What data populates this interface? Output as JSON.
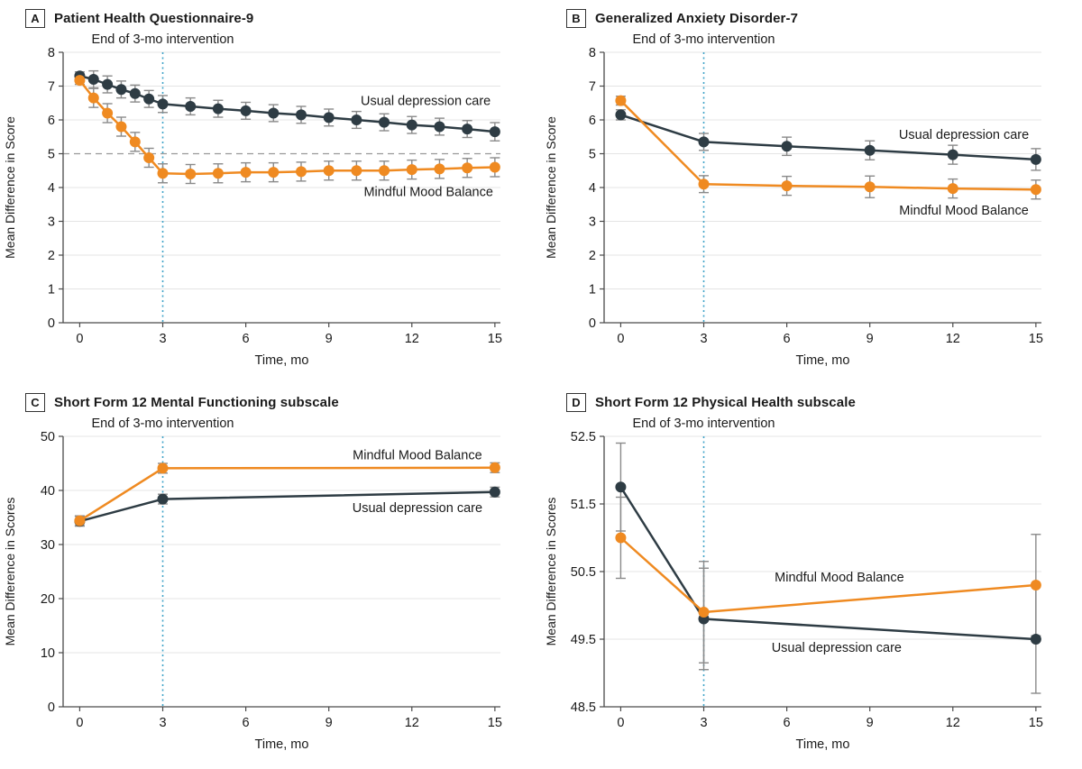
{
  "figure": {
    "xlabel": "Time, mo",
    "colors": {
      "usual_care": "#2e3c44",
      "mindful_mood_balance": "#ef8a21",
      "annotation_blue": "#3fa3c8",
      "error_bar_gray": "#8a8a8a",
      "gridline": "#e4e4e4",
      "reference_dash": "#999999"
    }
  },
  "chart_data": [
    {
      "type": "line",
      "panel_label": "A",
      "title": "Patient Health Questionnaire-9",
      "annotation": {
        "text": "End of 3-mo intervention",
        "x": 3,
        "color": "#3fa3c8"
      },
      "xlabel": "Time, mo",
      "ylabel": "Mean Difference in Score",
      "xlim": [
        -0.6,
        15.2
      ],
      "ylim": [
        0,
        8
      ],
      "yticks": [
        0,
        1,
        2,
        3,
        4,
        5,
        6,
        7,
        8
      ],
      "xticks": [
        0,
        3,
        6,
        9,
        12,
        15
      ],
      "grid": true,
      "reference_line": {
        "y": 5,
        "style": "dashed"
      },
      "series": [
        {
          "name": "Usual depression care",
          "color": "#2e3c44",
          "x": [
            0,
            0.5,
            1,
            1.5,
            2,
            2.5,
            3,
            4,
            5,
            6,
            7,
            8,
            9,
            10,
            11,
            12,
            13,
            14,
            15
          ],
          "y": [
            7.3,
            7.2,
            7.05,
            6.9,
            6.78,
            6.62,
            6.47,
            6.4,
            6.33,
            6.27,
            6.2,
            6.15,
            6.07,
            6.0,
            5.93,
            5.85,
            5.8,
            5.73,
            5.65
          ],
          "lo": [
            7.18,
            6.95,
            6.8,
            6.65,
            6.53,
            6.37,
            6.22,
            6.15,
            6.08,
            6.02,
            5.95,
            5.9,
            5.82,
            5.75,
            5.68,
            5.6,
            5.55,
            5.48,
            5.38
          ],
          "hi": [
            7.42,
            7.45,
            7.3,
            7.15,
            7.03,
            6.87,
            6.72,
            6.65,
            6.58,
            6.52,
            6.45,
            6.4,
            6.32,
            6.25,
            6.18,
            6.1,
            6.05,
            5.98,
            5.92
          ],
          "label_pos": {
            "x": 12.5,
            "y": 6.58
          }
        },
        {
          "name": "Mindful Mood Balance",
          "color": "#ef8a21",
          "x": [
            0,
            0.5,
            1,
            1.5,
            2,
            2.5,
            3,
            4,
            5,
            6,
            7,
            8,
            9,
            10,
            11,
            12,
            13,
            14,
            15
          ],
          "y": [
            7.17,
            6.65,
            6.2,
            5.8,
            5.35,
            4.88,
            4.42,
            4.4,
            4.42,
            4.45,
            4.45,
            4.47,
            4.5,
            4.5,
            4.5,
            4.53,
            4.55,
            4.58,
            4.6
          ],
          "lo": [
            7.05,
            6.37,
            5.92,
            5.52,
            5.07,
            4.6,
            4.14,
            4.12,
            4.14,
            4.17,
            4.17,
            4.19,
            4.22,
            4.22,
            4.22,
            4.25,
            4.27,
            4.3,
            4.32
          ],
          "hi": [
            7.29,
            6.93,
            6.48,
            6.08,
            5.63,
            5.16,
            4.7,
            4.68,
            4.7,
            4.73,
            4.73,
            4.75,
            4.78,
            4.78,
            4.78,
            4.81,
            4.83,
            4.86,
            4.88
          ],
          "label_pos": {
            "x": 12.6,
            "y": 3.88
          }
        }
      ]
    },
    {
      "type": "line",
      "panel_label": "B",
      "title": "Generalized Anxiety Disorder-7",
      "annotation": {
        "text": "End of 3-mo intervention",
        "x": 3,
        "color": "#3fa3c8"
      },
      "xlabel": "Time, mo",
      "ylabel": "Mean Difference in Score",
      "xlim": [
        -0.6,
        15.2
      ],
      "ylim": [
        0,
        8
      ],
      "yticks": [
        0,
        1,
        2,
        3,
        4,
        5,
        6,
        7,
        8
      ],
      "xticks": [
        0,
        3,
        6,
        9,
        12,
        15
      ],
      "grid": true,
      "series": [
        {
          "name": "Usual depression care",
          "color": "#2e3c44",
          "x": [
            0,
            3,
            6,
            9,
            12,
            15
          ],
          "y": [
            6.15,
            5.35,
            5.22,
            5.1,
            4.97,
            4.83
          ],
          "lo": [
            6.0,
            5.1,
            4.95,
            4.82,
            4.69,
            4.51
          ],
          "hi": [
            6.3,
            5.6,
            5.49,
            5.38,
            5.25,
            5.15
          ],
          "label_pos": {
            "x": 12.4,
            "y": 5.58
          }
        },
        {
          "name": "Mindful Mood Balance",
          "color": "#ef8a21",
          "x": [
            0,
            3,
            6,
            9,
            12,
            15
          ],
          "y": [
            6.57,
            4.1,
            4.05,
            4.02,
            3.97,
            3.94
          ],
          "lo": [
            6.44,
            3.85,
            3.77,
            3.7,
            3.69,
            3.66
          ],
          "hi": [
            6.7,
            4.35,
            4.33,
            4.34,
            4.25,
            4.22
          ],
          "label_pos": {
            "x": 12.4,
            "y": 3.34
          }
        }
      ]
    },
    {
      "type": "line",
      "panel_label": "C",
      "title": "Short Form 12 Mental Functioning subscale",
      "annotation": {
        "text": "End of 3-mo intervention",
        "x": 3,
        "color": "#3fa3c8"
      },
      "xlabel": "Time, mo",
      "ylabel": "Mean Difference in Scores",
      "xlim": [
        -0.6,
        15.2
      ],
      "ylim": [
        0,
        50
      ],
      "yticks": [
        0,
        10,
        20,
        30,
        40,
        50
      ],
      "xticks": [
        0,
        3,
        6,
        9,
        12,
        15
      ],
      "grid": true,
      "series": [
        {
          "name": "Usual depression care",
          "color": "#2e3c44",
          "x": [
            0,
            3,
            15
          ],
          "y": [
            34.3,
            38.4,
            39.7
          ],
          "lo": [
            33.4,
            37.5,
            38.8
          ],
          "hi": [
            35.2,
            39.3,
            40.6
          ],
          "label_pos": {
            "x": 12.2,
            "y": 36.8
          }
        },
        {
          "name": "Mindful Mood Balance",
          "color": "#ef8a21",
          "x": [
            0,
            3,
            15
          ],
          "y": [
            34.4,
            44.1,
            44.2
          ],
          "lo": [
            33.5,
            43.2,
            43.3
          ],
          "hi": [
            35.3,
            45.0,
            45.1
          ],
          "label_pos": {
            "x": 12.2,
            "y": 46.6
          }
        }
      ]
    },
    {
      "type": "line",
      "panel_label": "D",
      "title": "Short Form 12 Physical Health subscale",
      "annotation": {
        "text": "End of 3-mo intervention",
        "x": 3,
        "color": "#3fa3c8"
      },
      "xlabel": "Time, mo",
      "ylabel": "Mean Difference in Scores",
      "xlim": [
        -0.6,
        15.2
      ],
      "ylim": [
        48.5,
        52.5
      ],
      "yticks": [
        48.5,
        49.5,
        50.5,
        51.5,
        52.5
      ],
      "xticks": [
        0,
        3,
        6,
        9,
        12,
        15
      ],
      "grid": true,
      "series": [
        {
          "name": "Usual depression care",
          "color": "#2e3c44",
          "x": [
            0,
            3,
            15
          ],
          "y": [
            51.75,
            49.8,
            49.5
          ],
          "lo": [
            51.1,
            49.05,
            48.7
          ],
          "hi": [
            52.4,
            50.55,
            50.3
          ],
          "label_pos": {
            "x": 7.8,
            "y": 49.38
          }
        },
        {
          "name": "Mindful Mood Balance",
          "color": "#ef8a21",
          "x": [
            0,
            3,
            15
          ],
          "y": [
            51.0,
            49.9,
            50.3
          ],
          "lo": [
            50.4,
            49.15,
            49.55
          ],
          "hi": [
            51.6,
            50.65,
            51.05
          ],
          "label_pos": {
            "x": 7.9,
            "y": 50.42
          }
        }
      ]
    }
  ]
}
